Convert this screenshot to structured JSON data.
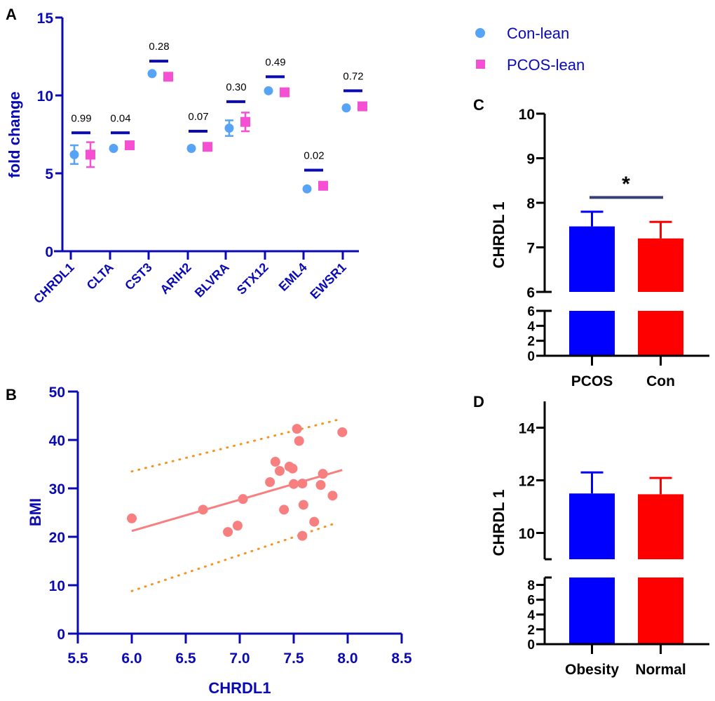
{
  "colors": {
    "axis_blue": "#0a0ab4",
    "con_lean": "#57a3f5",
    "pcos_lean": "#f54fd4",
    "pbar": "#0a0ab4",
    "scatter_point": "#f77f7f",
    "fit_line": "#f77f7f",
    "ci_line": "#f5931e",
    "bar_blue": "#0000ff",
    "bar_red": "#ff0000",
    "sig_line": "#3a3f7a",
    "black": "#000000"
  },
  "panel_letters": [
    "A",
    "B",
    "C",
    "D"
  ],
  "chart_data": [
    {
      "id": "A",
      "type": "scatter",
      "title": "",
      "xlabel": "",
      "ylabel": "fold change",
      "ylim": [
        0,
        15
      ],
      "yticks": [
        "0",
        "5",
        "10",
        "15"
      ],
      "categories": [
        "CHRDL1",
        "CLTA",
        "CST3",
        "ARIH2",
        "BLVRA",
        "STX12",
        "EML4",
        "EWSR1"
      ],
      "legend": {
        "placement": "top-right",
        "entries": [
          "Con-lean",
          "PCOS-lean"
        ]
      },
      "series": [
        {
          "name": "Con-lean",
          "marker": "circle",
          "values": [
            6.2,
            6.6,
            11.4,
            6.6,
            7.9,
            10.3,
            4.0,
            9.2
          ],
          "err": [
            0.6,
            0,
            0,
            0,
            0.5,
            0,
            0,
            0
          ]
        },
        {
          "name": "PCOS-lean",
          "marker": "square",
          "values": [
            6.2,
            6.8,
            11.2,
            6.7,
            8.3,
            10.2,
            4.2,
            9.3
          ],
          "err": [
            0.8,
            0,
            0,
            0,
            0.6,
            0,
            0,
            0
          ]
        }
      ],
      "p_values": [
        "0.99",
        "0.04",
        "0.28",
        "0.07",
        "0.30",
        "0.49",
        "0.02",
        "0.72"
      ],
      "p_bar_level": [
        7.6,
        7.6,
        12.2,
        7.7,
        9.6,
        11.2,
        5.2,
        10.3
      ]
    },
    {
      "id": "B",
      "type": "scatter",
      "title": "",
      "xlabel": "CHRDL1",
      "ylabel": "BMI",
      "xlim": [
        5.5,
        8.5
      ],
      "ylim": [
        0,
        50
      ],
      "xticks": [
        "5.5",
        "6.0",
        "6.5",
        "7.0",
        "7.5",
        "8.0",
        "8.5"
      ],
      "yticks": [
        "0",
        "10",
        "20",
        "30",
        "40",
        "50"
      ],
      "points": [
        [
          6.0,
          23.8
        ],
        [
          6.66,
          25.6
        ],
        [
          6.89,
          21.0
        ],
        [
          6.98,
          22.3
        ],
        [
          7.03,
          27.8
        ],
        [
          7.28,
          31.3
        ],
        [
          7.33,
          35.5
        ],
        [
          7.37,
          33.6
        ],
        [
          7.41,
          25.6
        ],
        [
          7.46,
          34.5
        ],
        [
          7.49,
          34.1
        ],
        [
          7.5,
          30.9
        ],
        [
          7.53,
          42.3
        ],
        [
          7.55,
          39.8
        ],
        [
          7.58,
          20.2
        ],
        [
          7.58,
          31.0
        ],
        [
          7.59,
          26.6
        ],
        [
          7.69,
          23.1
        ],
        [
          7.75,
          30.7
        ],
        [
          7.77,
          33.0
        ],
        [
          7.86,
          28.5
        ],
        [
          7.95,
          41.6
        ]
      ],
      "fit_line": {
        "x": [
          6.0,
          7.95
        ],
        "y": [
          21.2,
          33.8
        ]
      },
      "ci_upper": {
        "x": [
          6.0,
          7.95
        ],
        "y": [
          33.5,
          44.4
        ]
      },
      "ci_lower": {
        "x": [
          6.0,
          7.9
        ],
        "y": [
          8.8,
          22.9
        ]
      }
    },
    {
      "id": "C",
      "type": "bar",
      "title": "",
      "xlabel": "",
      "ylabel": "CHRDL 1",
      "categories": [
        "PCOS",
        "Con"
      ],
      "values": [
        7.47,
        7.2
      ],
      "err": [
        0.33,
        0.37
      ],
      "axis_break": {
        "lower": [
          0,
          6
        ],
        "upper": [
          6,
          10
        ]
      },
      "yticks_upper": [
        "6",
        "7",
        "8",
        "9",
        "10"
      ],
      "yticks_lower": [
        "0",
        "2",
        "4",
        "6"
      ],
      "significance": {
        "label": "*",
        "between": [
          "PCOS",
          "Con"
        ],
        "level": 8.12
      }
    },
    {
      "id": "D",
      "type": "bar",
      "title": "",
      "xlabel": "",
      "ylabel": "CHRDL 1",
      "categories": [
        "Obesity",
        "Normal"
      ],
      "values": [
        11.5,
        11.47
      ],
      "err": [
        0.8,
        0.62
      ],
      "axis_break": {
        "lower": [
          0,
          9
        ],
        "upper": [
          9,
          15
        ]
      },
      "yticks_upper": [
        "10",
        "12",
        "14"
      ],
      "yticks_lower": [
        "0",
        "2",
        "4",
        "6",
        "8"
      ]
    }
  ]
}
